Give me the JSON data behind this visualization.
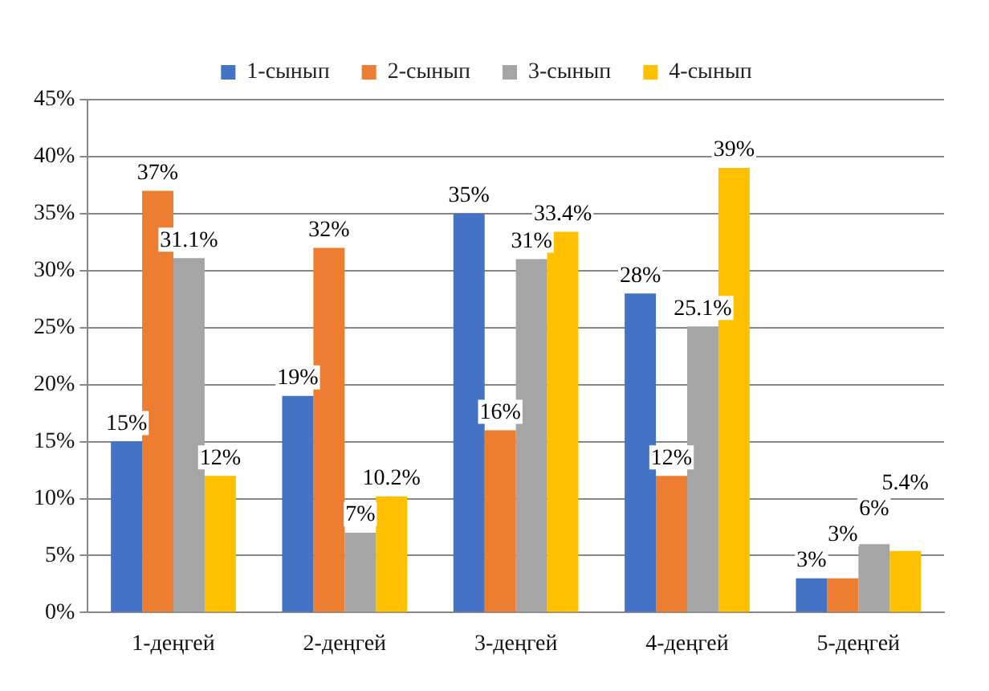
{
  "chart_data": {
    "type": "bar",
    "categories": [
      "1-деңгей",
      "2-деңгей",
      "3-деңгей",
      "4-деңгей",
      "5-деңгей"
    ],
    "series": [
      {
        "name": "1-сынып",
        "color": "#4472c4",
        "values": [
          15,
          19,
          35,
          28,
          3
        ],
        "value_labels": [
          "15%",
          "19%",
          "35%",
          "28%",
          "3%"
        ]
      },
      {
        "name": "2-сынып",
        "color": "#ed7d31",
        "values": [
          37,
          32,
          16,
          12,
          3
        ],
        "value_labels": [
          "37%",
          "32%",
          "16%",
          "12%",
          "3%"
        ]
      },
      {
        "name": "3-сынып",
        "color": "#a5a5a5",
        "values": [
          31.1,
          7,
          31,
          25.1,
          6
        ],
        "value_labels": [
          "31.1%",
          "7%",
          "31%",
          "25.1%",
          "6%"
        ]
      },
      {
        "name": "4-сынып",
        "color": "#ffc000",
        "values": [
          12,
          10.2,
          33.4,
          39,
          5.4
        ],
        "value_labels": [
          "12%",
          "10.2%",
          "33.4%",
          "39%",
          "5.4%"
        ]
      }
    ],
    "ylim": [
      0,
      45
    ],
    "yticks": [
      {
        "value": 0,
        "label": "0%"
      },
      {
        "value": 5,
        "label": "5%"
      },
      {
        "value": 10,
        "label": "10%"
      },
      {
        "value": 15,
        "label": "15%"
      },
      {
        "value": 20,
        "label": "20%"
      },
      {
        "value": 25,
        "label": "25%"
      },
      {
        "value": 30,
        "label": "30%"
      },
      {
        "value": 35,
        "label": "35%"
      },
      {
        "value": 40,
        "label": "40%"
      },
      {
        "value": 45,
        "label": "45%"
      }
    ],
    "grid": "y",
    "legend": "top"
  }
}
